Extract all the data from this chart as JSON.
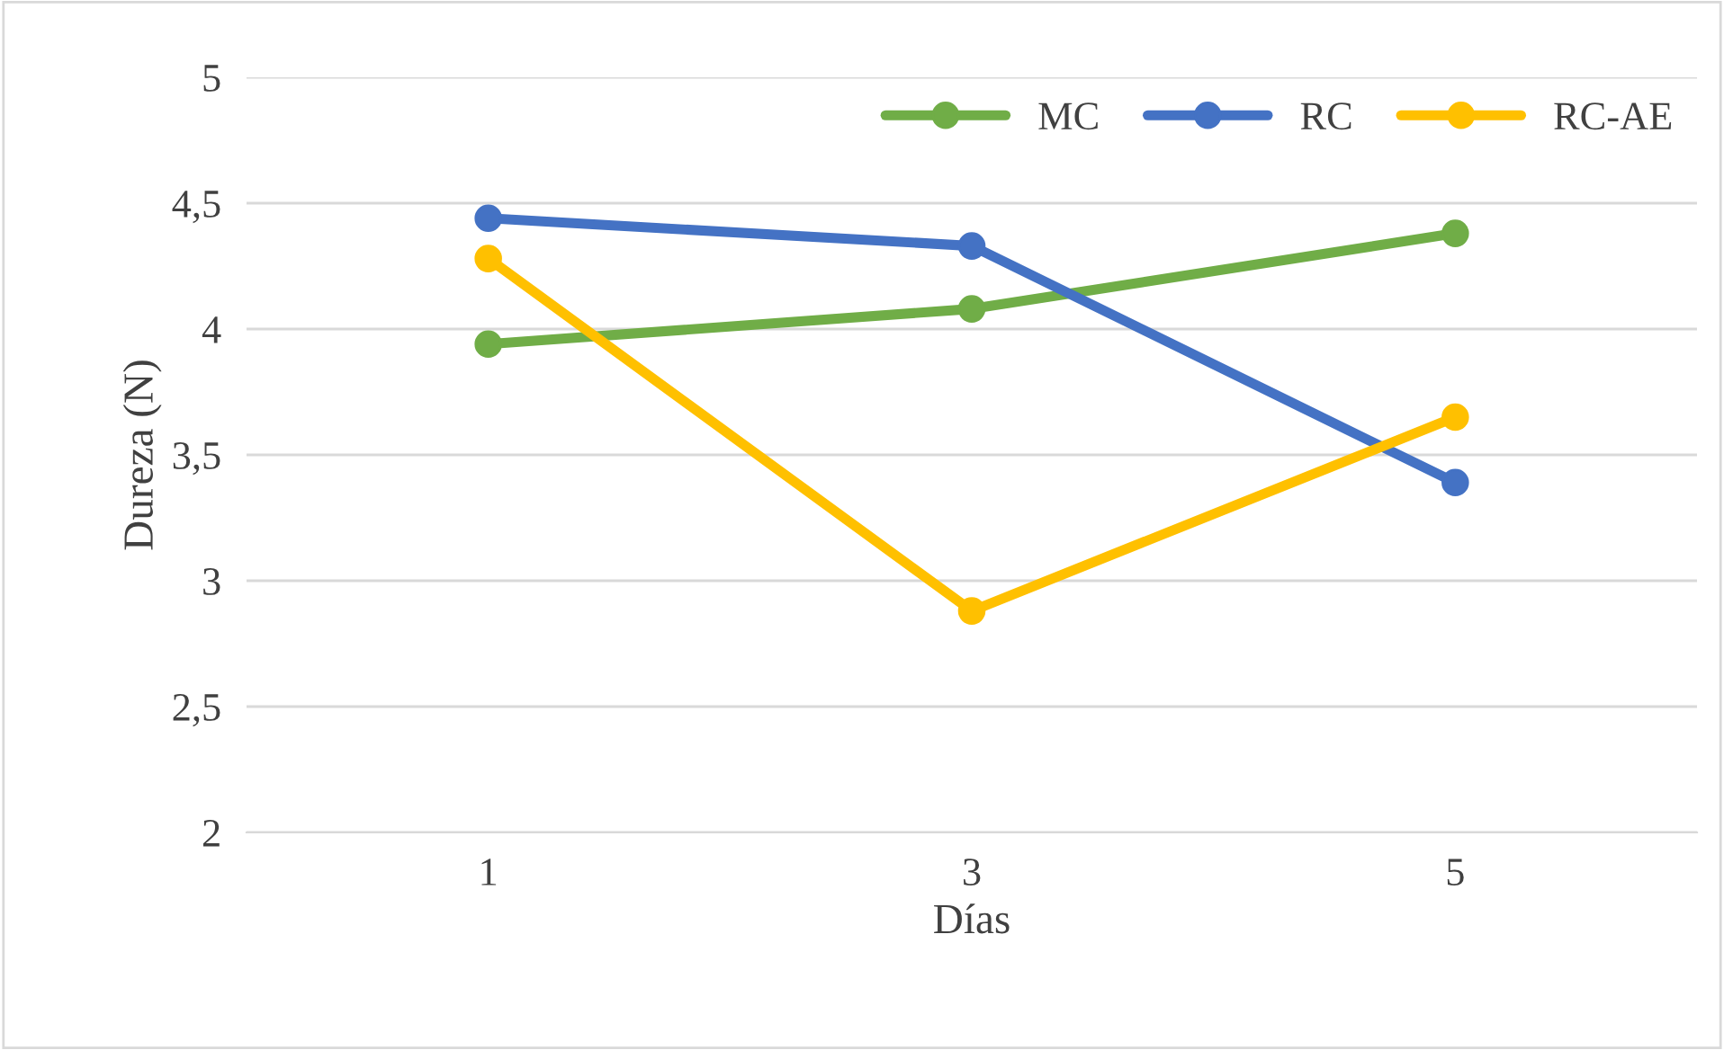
{
  "chart_data": {
    "type": "line",
    "xlabel": "Días",
    "ylabel": "Dureza (N)",
    "categories": [
      "1",
      "3",
      "5"
    ],
    "series": [
      {
        "name": "MC",
        "color": "#70ad47",
        "values": [
          3.94,
          4.08,
          4.38
        ]
      },
      {
        "name": "RC",
        "color": "#4472c4",
        "values": [
          4.44,
          4.33,
          3.39
        ]
      },
      {
        "name": "RC-AE",
        "color": "#ffc000",
        "values": [
          4.28,
          2.88,
          3.65
        ]
      }
    ],
    "ylim": [
      2,
      5
    ],
    "yticks": [
      2,
      {
        "value": 2.5,
        "label": "2,5"
      },
      3,
      {
        "value": 3.5,
        "label": "3,5"
      },
      4,
      {
        "value": 4.5,
        "label": "4,5"
      },
      5
    ],
    "grid": "y",
    "legend": "top right",
    "marker": "circle",
    "line_style": "solid"
  }
}
